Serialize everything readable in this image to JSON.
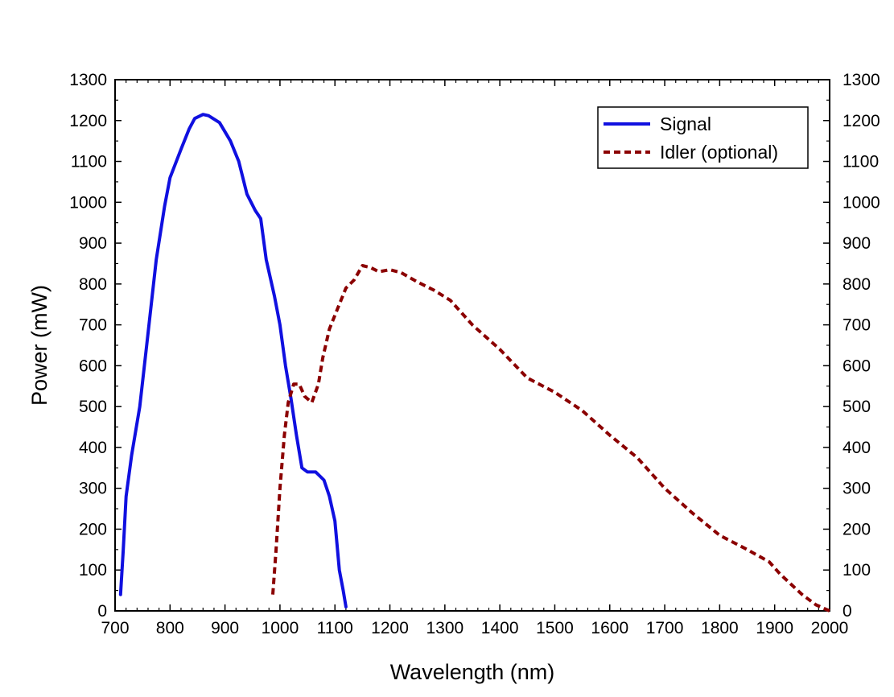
{
  "chart_data": {
    "type": "line",
    "title": "",
    "xlabel": "Wavelength (nm)",
    "ylabel": "Power (mW)",
    "xlim": [
      700,
      2000
    ],
    "ylim": [
      0,
      1300
    ],
    "x_ticks": [
      700,
      800,
      900,
      1000,
      1100,
      1200,
      1300,
      1400,
      1500,
      1600,
      1700,
      1800,
      1900,
      2000
    ],
    "y_ticks": [
      0,
      100,
      200,
      300,
      400,
      500,
      600,
      700,
      800,
      900,
      1000,
      1100,
      1200,
      1300
    ],
    "right_axis_mirrored": true,
    "grid": false,
    "legend_position": "top-right",
    "series": [
      {
        "name": "Signal",
        "color": "#1010e0",
        "style": "solid",
        "points": [
          [
            710,
            40
          ],
          [
            715,
            150
          ],
          [
            720,
            280
          ],
          [
            730,
            380
          ],
          [
            745,
            500
          ],
          [
            760,
            680
          ],
          [
            775,
            860
          ],
          [
            790,
            990
          ],
          [
            800,
            1060
          ],
          [
            820,
            1130
          ],
          [
            835,
            1180
          ],
          [
            845,
            1205
          ],
          [
            860,
            1215
          ],
          [
            870,
            1212
          ],
          [
            890,
            1195
          ],
          [
            910,
            1150
          ],
          [
            925,
            1100
          ],
          [
            940,
            1020
          ],
          [
            955,
            980
          ],
          [
            965,
            960
          ],
          [
            975,
            860
          ],
          [
            990,
            770
          ],
          [
            1000,
            700
          ],
          [
            1010,
            600
          ],
          [
            1020,
            520
          ],
          [
            1030,
            430
          ],
          [
            1040,
            350
          ],
          [
            1050,
            340
          ],
          [
            1065,
            340
          ],
          [
            1080,
            320
          ],
          [
            1090,
            280
          ],
          [
            1100,
            220
          ],
          [
            1108,
            100
          ],
          [
            1115,
            50
          ],
          [
            1120,
            10
          ]
        ]
      },
      {
        "name": "Idler (optional)",
        "color": "#8b0000",
        "style": "dashed",
        "points": [
          [
            987,
            40
          ],
          [
            993,
            150
          ],
          [
            1000,
            300
          ],
          [
            1008,
            430
          ],
          [
            1015,
            510
          ],
          [
            1025,
            555
          ],
          [
            1035,
            555
          ],
          [
            1045,
            525
          ],
          [
            1058,
            510
          ],
          [
            1070,
            555
          ],
          [
            1078,
            620
          ],
          [
            1090,
            690
          ],
          [
            1105,
            740
          ],
          [
            1120,
            790
          ],
          [
            1135,
            810
          ],
          [
            1150,
            845
          ],
          [
            1165,
            840
          ],
          [
            1180,
            830
          ],
          [
            1200,
            835
          ],
          [
            1220,
            828
          ],
          [
            1250,
            805
          ],
          [
            1280,
            785
          ],
          [
            1310,
            760
          ],
          [
            1350,
            700
          ],
          [
            1400,
            640
          ],
          [
            1450,
            570
          ],
          [
            1500,
            535
          ],
          [
            1550,
            490
          ],
          [
            1600,
            430
          ],
          [
            1650,
            375
          ],
          [
            1700,
            300
          ],
          [
            1750,
            240
          ],
          [
            1800,
            185
          ],
          [
            1850,
            150
          ],
          [
            1890,
            120
          ],
          [
            1910,
            90
          ],
          [
            1950,
            40
          ],
          [
            1975,
            15
          ],
          [
            2000,
            0
          ]
        ]
      }
    ]
  }
}
